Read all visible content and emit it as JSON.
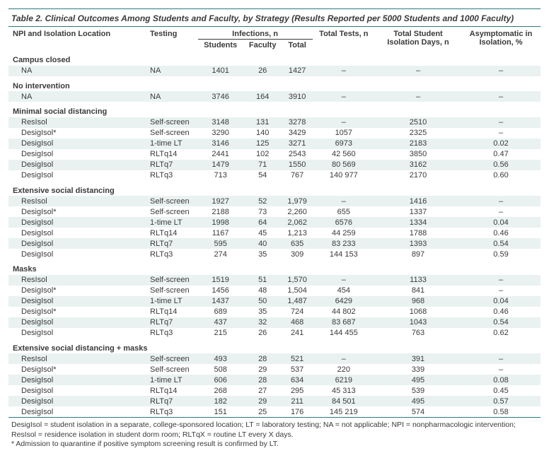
{
  "table": {
    "title_prefix": "Table 2.",
    "title_rest": " Clinical Outcomes Among Students and Faculty, by Strategy (Results Reported per 5000 Students and 1000 Faculty)",
    "columns": {
      "npi": "NPI and Isolation Location",
      "testing": "Testing",
      "infections": "Infections, n",
      "inf_students": "Students",
      "inf_faculty": "Faculty",
      "inf_total": "Total",
      "tests": "Total Tests, n",
      "iso_days": "Total Student Isolation Days, n",
      "asym": "Asymptomatic in Isolation, %"
    },
    "col_widths": {
      "npi": 170,
      "testing": 90,
      "inf_students": 70,
      "inf_faculty": 70,
      "inf_total": 60,
      "tests": 90,
      "iso_days": 120,
      "asym": 100
    },
    "groups": [
      {
        "label": "Campus closed",
        "rows": [
          {
            "npi": "NA",
            "testing": "NA",
            "s": "1401",
            "f": "26",
            "t": "1427",
            "tests": "–",
            "iso": "–",
            "asym": "–",
            "alt": true
          }
        ]
      },
      {
        "label": "No intervention",
        "rows": [
          {
            "npi": "NA",
            "testing": "NA",
            "s": "3746",
            "f": "164",
            "t": "3910",
            "tests": "–",
            "iso": "–",
            "asym": "–",
            "alt": true
          }
        ]
      },
      {
        "label": "Minimal social distancing",
        "rows": [
          {
            "npi": "ResIsol",
            "testing": "Self-screen",
            "s": "3148",
            "f": "131",
            "t": "3278",
            "tests": "–",
            "iso": "2510",
            "asym": "–",
            "alt": true
          },
          {
            "npi": "DesigIsol*",
            "testing": "Self-screen",
            "s": "3290",
            "f": "140",
            "t": "3429",
            "tests": "1057",
            "iso": "2325",
            "asym": "–",
            "alt": false
          },
          {
            "npi": "DesigIsol",
            "testing": "1-time LT",
            "s": "3146",
            "f": "125",
            "t": "3271",
            "tests": "6973",
            "iso": "2183",
            "asym": "0.02",
            "alt": true
          },
          {
            "npi": "DesigIsol",
            "testing": "RLTq14",
            "s": "2441",
            "f": "102",
            "t": "2543",
            "tests": "42 560",
            "iso": "3850",
            "asym": "0.47",
            "alt": false
          },
          {
            "npi": "DesigIsol",
            "testing": "RLTq7",
            "s": "1479",
            "f": "71",
            "t": "1550",
            "tests": "80 569",
            "iso": "3162",
            "asym": "0.56",
            "alt": true
          },
          {
            "npi": "DesigIsol",
            "testing": "RLTq3",
            "s": "713",
            "f": "54",
            "t": "767",
            "tests": "140 977",
            "iso": "2170",
            "asym": "0.60",
            "alt": false
          }
        ]
      },
      {
        "label": "Extensive social distancing",
        "rows": [
          {
            "npi": "ResIsol",
            "testing": "Self-screen",
            "s": "1927",
            "f": "52",
            "t": "1,979",
            "tests": "–",
            "iso": "1416",
            "asym": "–",
            "alt": true
          },
          {
            "npi": "DesigIsol*",
            "testing": "Self-screen",
            "s": "2188",
            "f": "73",
            "t": "2,260",
            "tests": "655",
            "iso": "1337",
            "asym": "–",
            "alt": false
          },
          {
            "npi": "DesigIsol",
            "testing": "1-time LT",
            "s": "1998",
            "f": "64",
            "t": "2,062",
            "tests": "6576",
            "iso": "1334",
            "asym": "0.04",
            "alt": true
          },
          {
            "npi": "DesigIsol",
            "testing": "RLTq14",
            "s": "1167",
            "f": "45",
            "t": "1,213",
            "tests": "44 259",
            "iso": "1788",
            "asym": "0.46",
            "alt": false
          },
          {
            "npi": "DesigIsol",
            "testing": "RLTq7",
            "s": "595",
            "f": "40",
            "t": "635",
            "tests": "83 233",
            "iso": "1393",
            "asym": "0.54",
            "alt": true
          },
          {
            "npi": "DesigIsol",
            "testing": "RLTq3",
            "s": "274",
            "f": "35",
            "t": "309",
            "tests": "144 153",
            "iso": "897",
            "asym": "0.59",
            "alt": false
          }
        ]
      },
      {
        "label": "Masks",
        "rows": [
          {
            "npi": "ResIsol",
            "testing": "Self-screen",
            "s": "1519",
            "f": "51",
            "t": "1,570",
            "tests": "–",
            "iso": "1133",
            "asym": "–",
            "alt": true
          },
          {
            "npi": "DesigIsol*",
            "testing": "Self-screen",
            "s": "1456",
            "f": "48",
            "t": "1,504",
            "tests": "454",
            "iso": "841",
            "asym": "–",
            "alt": false
          },
          {
            "npi": "DesigIsol",
            "testing": "1-time LT",
            "s": "1437",
            "f": "50",
            "t": "1,487",
            "tests": "6429",
            "iso": "968",
            "asym": "0.04",
            "alt": true
          },
          {
            "npi": "DesigIsol*",
            "testing": "RLTq14",
            "s": "689",
            "f": "35",
            "t": "724",
            "tests": "44 802",
            "iso": "1068",
            "asym": "0.46",
            "alt": false
          },
          {
            "npi": "DesigIsol",
            "testing": "RLTq7",
            "s": "437",
            "f": "32",
            "t": "468",
            "tests": "83 687",
            "iso": "1043",
            "asym": "0.54",
            "alt": true
          },
          {
            "npi": "DesigIsol",
            "testing": "RLTq3",
            "s": "215",
            "f": "26",
            "t": "241",
            "tests": "144 455",
            "iso": "763",
            "asym": "0.62",
            "alt": false
          }
        ]
      },
      {
        "label": "Extensive social distancing + masks",
        "rows": [
          {
            "npi": "ResIsol",
            "testing": "Self-screen",
            "s": "493",
            "f": "28",
            "t": "521",
            "tests": "–",
            "iso": "391",
            "asym": "–",
            "alt": true
          },
          {
            "npi": "DesigIsol*",
            "testing": "Self-screen",
            "s": "508",
            "f": "29",
            "t": "537",
            "tests": "220",
            "iso": "339",
            "asym": "–",
            "alt": false
          },
          {
            "npi": "DesigIsol",
            "testing": "1-time LT",
            "s": "606",
            "f": "28",
            "t": "634",
            "tests": "6219",
            "iso": "495",
            "asym": "0.08",
            "alt": true
          },
          {
            "npi": "DesigIsol",
            "testing": "RLTq14",
            "s": "268",
            "f": "27",
            "t": "295",
            "tests": "45 313",
            "iso": "539",
            "asym": "0.45",
            "alt": false
          },
          {
            "npi": "DesigIsol",
            "testing": "RLTq7",
            "s": "182",
            "f": "29",
            "t": "211",
            "tests": "84 501",
            "iso": "495",
            "asym": "0.57",
            "alt": true
          },
          {
            "npi": "DesigIsol",
            "testing": "RLTq3",
            "s": "151",
            "f": "25",
            "t": "176",
            "tests": "145 219",
            "iso": "574",
            "asym": "0.58",
            "alt": false
          }
        ]
      }
    ],
    "footnotes": [
      "DesigIsol = student isolation in a separate, college-sponsored location; LT = laboratory testing; NA = not applicable; NPI = nonpharmacologic intervention; ResIsol = residence isolation in student dorm room; RLTqX = routine LT every X days.",
      "* Admission to quarantine if positive symptom screening result is confirmed by LT."
    ]
  },
  "style": {
    "type": "table",
    "rule_color": "#2a7a7a",
    "alt_row_bg": "#e9f2f1",
    "background_color": "#ffffff",
    "text_color": "#3a3a3a",
    "title_fontsize": 12,
    "header_fontsize": 11,
    "body_fontsize": 11,
    "footnote_fontsize": 10.5
  }
}
